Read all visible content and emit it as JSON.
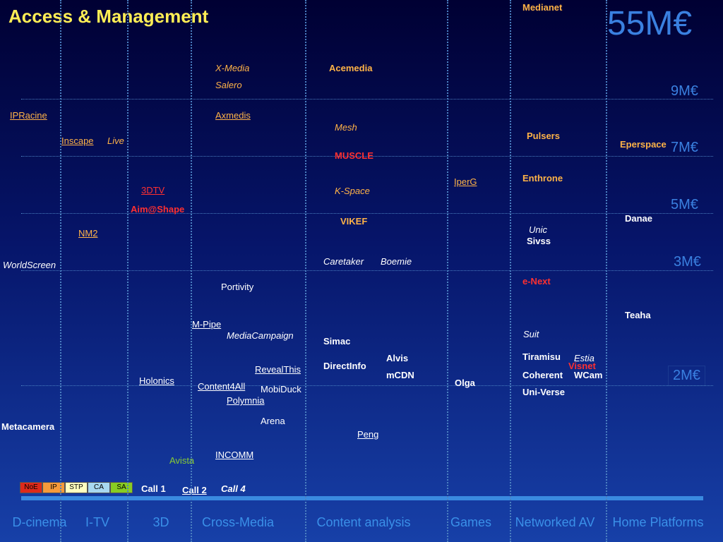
{
  "title": "Access & Management",
  "budget_scale": [
    "55M€",
    "9M€",
    "7M€",
    "5M€",
    "3M€",
    "2M€"
  ],
  "columns": [
    "D-cinema",
    "I-TV",
    "3D",
    "Cross-Media",
    "Content analysis",
    "Games",
    "Networked AV",
    "Home Platforms"
  ],
  "projects": [
    "Medianet",
    "X-Media",
    "Salero",
    "Acemedia",
    "IPRacine",
    "Axmedis",
    "Mesh",
    "Pulsers",
    "Eperspace",
    "Inscape",
    "Live",
    "MUSCLE",
    "Enthrone",
    "IperG",
    "3DTV",
    "K-Space",
    "Aim@Shape",
    "VIKEF",
    "Danae",
    "NM2",
    "Unic",
    "Sivss",
    "WorldScreen",
    "Caretaker",
    "Boemie",
    "Portivity",
    "e-Next",
    "Teaha",
    "M-Pipe",
    "MediaCampaign",
    "Suit",
    "Simac",
    "Alvis",
    "Tiramisu",
    "Estia",
    "Visnet",
    "DirectInfo",
    "RevealThis",
    "mCDN",
    "Coherent",
    "WCam",
    "Holonics",
    "Olga",
    "Content4All",
    "MobiDuck",
    "Uni-Verse",
    "Polymnia",
    "Metacamera",
    "Arena",
    "Peng",
    "INCOMM",
    "Avista"
  ],
  "legend": [
    "NoE",
    "IP",
    "STP",
    "CA",
    "SA"
  ],
  "calls": [
    "Call 1",
    "Call 2",
    "Call 4"
  ]
}
